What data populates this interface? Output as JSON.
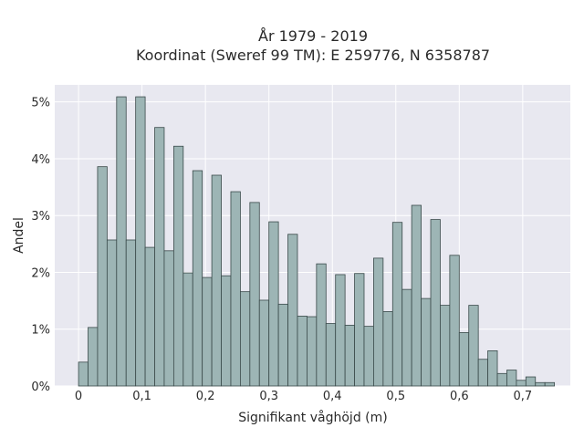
{
  "chart_data": {
    "type": "bar",
    "title_line1": "År 1979 - 2019",
    "title_line2": "Koordinat (Sweref 99 TM): E 259776, N 6358787",
    "xlabel": "Signifikant våghöjd (m)",
    "ylabel": "Andel",
    "xlim": [
      -0.0375,
      0.775
    ],
    "ylim": [
      0,
      5.3
    ],
    "x_ticks": [
      {
        "value": 0,
        "label": "0"
      },
      {
        "value": 0.1,
        "label": "0,1"
      },
      {
        "value": 0.2,
        "label": "0,2"
      },
      {
        "value": 0.3,
        "label": "0,3"
      },
      {
        "value": 0.4,
        "label": "0,4"
      },
      {
        "value": 0.5,
        "label": "0,5"
      },
      {
        "value": 0.6,
        "label": "0,6"
      },
      {
        "value": 0.7,
        "label": "0,7"
      }
    ],
    "y_ticks": [
      {
        "value": 0,
        "label": "0%"
      },
      {
        "value": 1,
        "label": "1%"
      },
      {
        "value": 2,
        "label": "2%"
      },
      {
        "value": 3,
        "label": "3%"
      },
      {
        "value": 4,
        "label": "4%"
      },
      {
        "value": 5,
        "label": "5%"
      }
    ],
    "bin_width": 0.015,
    "bin_start": 0,
    "values": [
      0.42,
      1.03,
      3.86,
      2.57,
      5.09,
      2.57,
      5.09,
      2.44,
      4.55,
      2.38,
      4.22,
      1.99,
      3.79,
      1.91,
      3.71,
      1.94,
      3.42,
      1.66,
      3.23,
      1.51,
      2.89,
      1.44,
      2.67,
      1.23,
      1.22,
      2.15,
      1.1,
      1.96,
      1.07,
      1.98,
      1.05,
      2.25,
      1.31,
      2.88,
      1.7,
      3.18,
      1.54,
      2.93,
      1.42,
      2.3,
      0.94,
      1.42,
      0.47,
      0.62,
      0.22,
      0.28,
      0.1,
      0.16,
      0.06,
      0.06
    ]
  }
}
